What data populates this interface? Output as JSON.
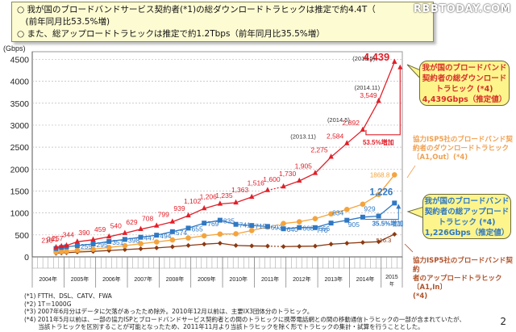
{
  "header": {
    "line1": "○ 我が国のブロードバンドサービス契約者(*1)の総ダウンロードトラヒックは推定で約4.4T（",
    "line2": "　(前年同月比53.5%増)",
    "line3": "○ また、総アップロードトラヒックは推定で約1.2Tbps（前年同月比35.5%増）",
    "watermark": "RBBTODAY.COM"
  },
  "chart_data": {
    "type": "line",
    "ylabel": "(Gbps)",
    "ylim": [
      0,
      4600
    ],
    "yticks": [
      0,
      500,
      1000,
      1500,
      2000,
      2500,
      3000,
      3500,
      4000,
      4500
    ],
    "grid": true,
    "x_years": [
      "2004年",
      "2005年",
      "2006年",
      "2007年",
      "2008年",
      "2009年",
      "2010年",
      "2011年",
      "2012年",
      "2013年",
      "2014年",
      "2015年"
    ],
    "x": [
      2004.75,
      2004.92,
      2005.08,
      2005.42,
      2005.92,
      2006.42,
      2006.92,
      2007.42,
      2007.92,
      2008.42,
      2008.92,
      2009.42,
      2009.92,
      2010.42,
      2010.92,
      2011.42,
      2011.92,
      2012.42,
      2012.92,
      2013.42,
      2013.92,
      2014.42,
      2014.92,
      2015.42
    ],
    "series": [
      {
        "name": "我が国のブロードバンド契約者の総ダウンロードトラヒック",
        "color": "#e0202a",
        "marker": "triangle",
        "values": [
          216,
          241,
          257,
          344,
          390,
          459,
          540,
          629,
          708,
          799,
          939,
          1102,
          1206,
          1235,
          1363,
          1516,
          1600,
          1730,
          1905,
          2275,
          2584,
          2892,
          3549,
          4439
        ],
        "labels": [
          "216",
          "241",
          "257",
          "344",
          "390",
          "459",
          "540",
          "629",
          "708",
          "799",
          "939",
          "1,102",
          "1,206",
          "1,235",
          "1,363",
          "1,516",
          "1,600",
          "1,730",
          "1,905",
          "2,275",
          "2,584",
          "2,892",
          "3,549",
          "4,439"
        ]
      },
      {
        "name": "我が国のブロードバンド契約者の総アップロードトラヒック",
        "color": "#2f78c4",
        "marker": "square",
        "values": [
          190,
          215,
          230,
          255,
          295,
          351,
          398,
          447,
          494,
          574,
          655,
          769,
          835,
          741,
          715,
          693,
          640,
          668,
          666,
          770,
          834,
          905,
          929,
          1226
        ],
        "labels": [
          "",
          "",
          "",
          "255",
          "295",
          "351",
          "398",
          "447",
          "494",
          "574",
          "655",
          "769",
          "835",
          "741",
          "715",
          "693",
          "640",
          "668",
          "666",
          "770",
          "834",
          "905",
          "929",
          "1,226"
        ]
      },
      {
        "name": "協力ISP5社のブロードバンド契約者のダウンロードトラヒック〔A1,Out〕",
        "color": "#f4a43c",
        "marker": "circle",
        "values": [
          110,
          120,
          128,
          150,
          175,
          215,
          255,
          300,
          340,
          385,
          430,
          480,
          520,
          525,
          600,
          680,
          760,
          800,
          870,
          980,
          1080,
          1200,
          1420,
          1868.8
        ],
        "labels": [
          "",
          "",
          "",
          "",
          "",
          "",
          "",
          "",
          "",
          "",
          "",
          "",
          "",
          "",
          "",
          "",
          "",
          "",
          "",
          "",
          "",
          "",
          "",
          "1868.8"
        ]
      },
      {
        "name": "協力ISP5社のブロードバンド契約者のアップロードトラヒック〔A1,In〕",
        "color": "#8b3a12",
        "marker": "diamond",
        "values": [
          80,
          90,
          95,
          110,
          125,
          145,
          165,
          185,
          205,
          230,
          260,
          290,
          310,
          260,
          250,
          245,
          235,
          240,
          245,
          290,
          310,
          330,
          345,
          516.3
        ],
        "labels": [
          "",
          "",
          "",
          "",
          "",
          "",
          "",
          "",
          "",
          "",
          "",
          "",
          "",
          "",
          "",
          "",
          "",
          "",
          "",
          "",
          "",
          "",
          "",
          "516.3"
        ]
      }
    ],
    "annotations": [
      {
        "text": "(2015.5)",
        "at": "4,439"
      },
      {
        "text": "(2014.11)",
        "at": "3,549"
      },
      {
        "text": "(2014.5)",
        "at": "2,892"
      },
      {
        "text": "(2013.11)",
        "at": "2,584"
      },
      {
        "text": "53.5%増加",
        "color": "#e0202a"
      },
      {
        "text": "35.5%増加",
        "color": "#2f78c4"
      }
    ]
  },
  "callouts": {
    "download_total": {
      "line1": "我が国のブロードバンド",
      "line2": "契約者の総ダウンロード",
      "line3": "トラヒック (*4)",
      "line4": "4,439Gbps（推定値）"
    },
    "isp_download": {
      "line1": "協力ISP5社のブロードバンド契",
      "line2": "約者のダウンロードトラヒック",
      "line3": "〔A1,Out〕(*4)"
    },
    "upload_total": {
      "line1": "我が国のブロードバンド",
      "line2": "契約者の総アップロード",
      "line3": "トラヒック (*4)",
      "line4": "1,226Gbps（推定値）"
    },
    "isp_upload": {
      "line1": "協力ISP5社のブロードバンド契約",
      "line2": "者のアップロードトラヒック〔A1,In〕",
      "line3": "(*4)"
    }
  },
  "footnotes": [
    "(*1) FTTH、DSL、CATV、FWA",
    "(*2) 1T＝1000G",
    "(*3) 2007年6月分はデータに欠落があったため除外。2010年12月以前は、主要IX3団体分のトラヒック。",
    "(*4) 2011年5月以前は、一部の協力ISPとブロードバンドサービス契約者との間のトラヒックに携帯電話網との間の移動通信トラヒックの一部が含まれていたが、",
    "　　 当該トラヒックを区別することが可能となったため、2011年11月より当該トラヒックを除く形でトラヒックの集計・試算を行うこととした。"
  ],
  "page_number": "2"
}
